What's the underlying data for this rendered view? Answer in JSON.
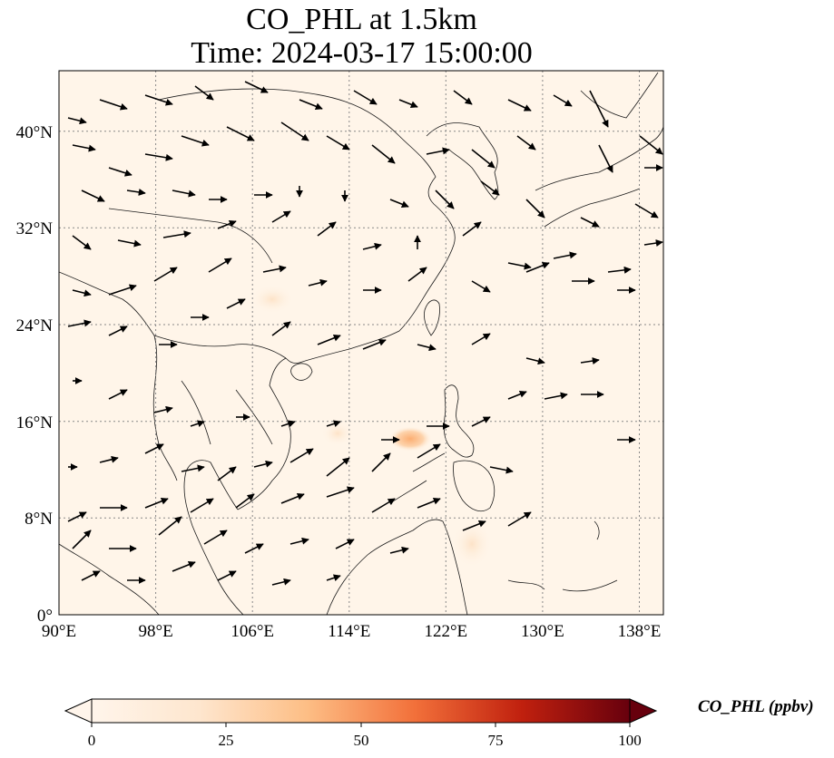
{
  "title": {
    "line1": "CO_PHL at 1.5km",
    "line2": "Time: 2024-03-17 15:00:00"
  },
  "map": {
    "lon_ticks": [
      "90°E",
      "98°E",
      "106°E",
      "114°E",
      "122°E",
      "130°E",
      "138°E"
    ],
    "lat_ticks": [
      "0°",
      "8°N",
      "16°N",
      "24°N",
      "32°N",
      "40°N"
    ],
    "lon_range": [
      90,
      140
    ],
    "lat_range": [
      0,
      45
    ],
    "background_color": "#fff5e9",
    "coastline_color": "#1a1a1a",
    "grid": "dotted",
    "wind_vectors": "black arrows",
    "concentration_hotspot": {
      "lon": 118.7,
      "lat": 14.5,
      "color": "#fdb97d"
    }
  },
  "colorbar": {
    "label": "CO_PHL (ppbv)",
    "ticks": [
      "0",
      "25",
      "50",
      "75",
      "100"
    ],
    "range": [
      0,
      100
    ],
    "colormap": [
      "#fff5eb",
      "#fdd0a2",
      "#fdae6b",
      "#f16913",
      "#d94801",
      "#a50f15",
      "#67000d"
    ],
    "extend": "both"
  }
}
